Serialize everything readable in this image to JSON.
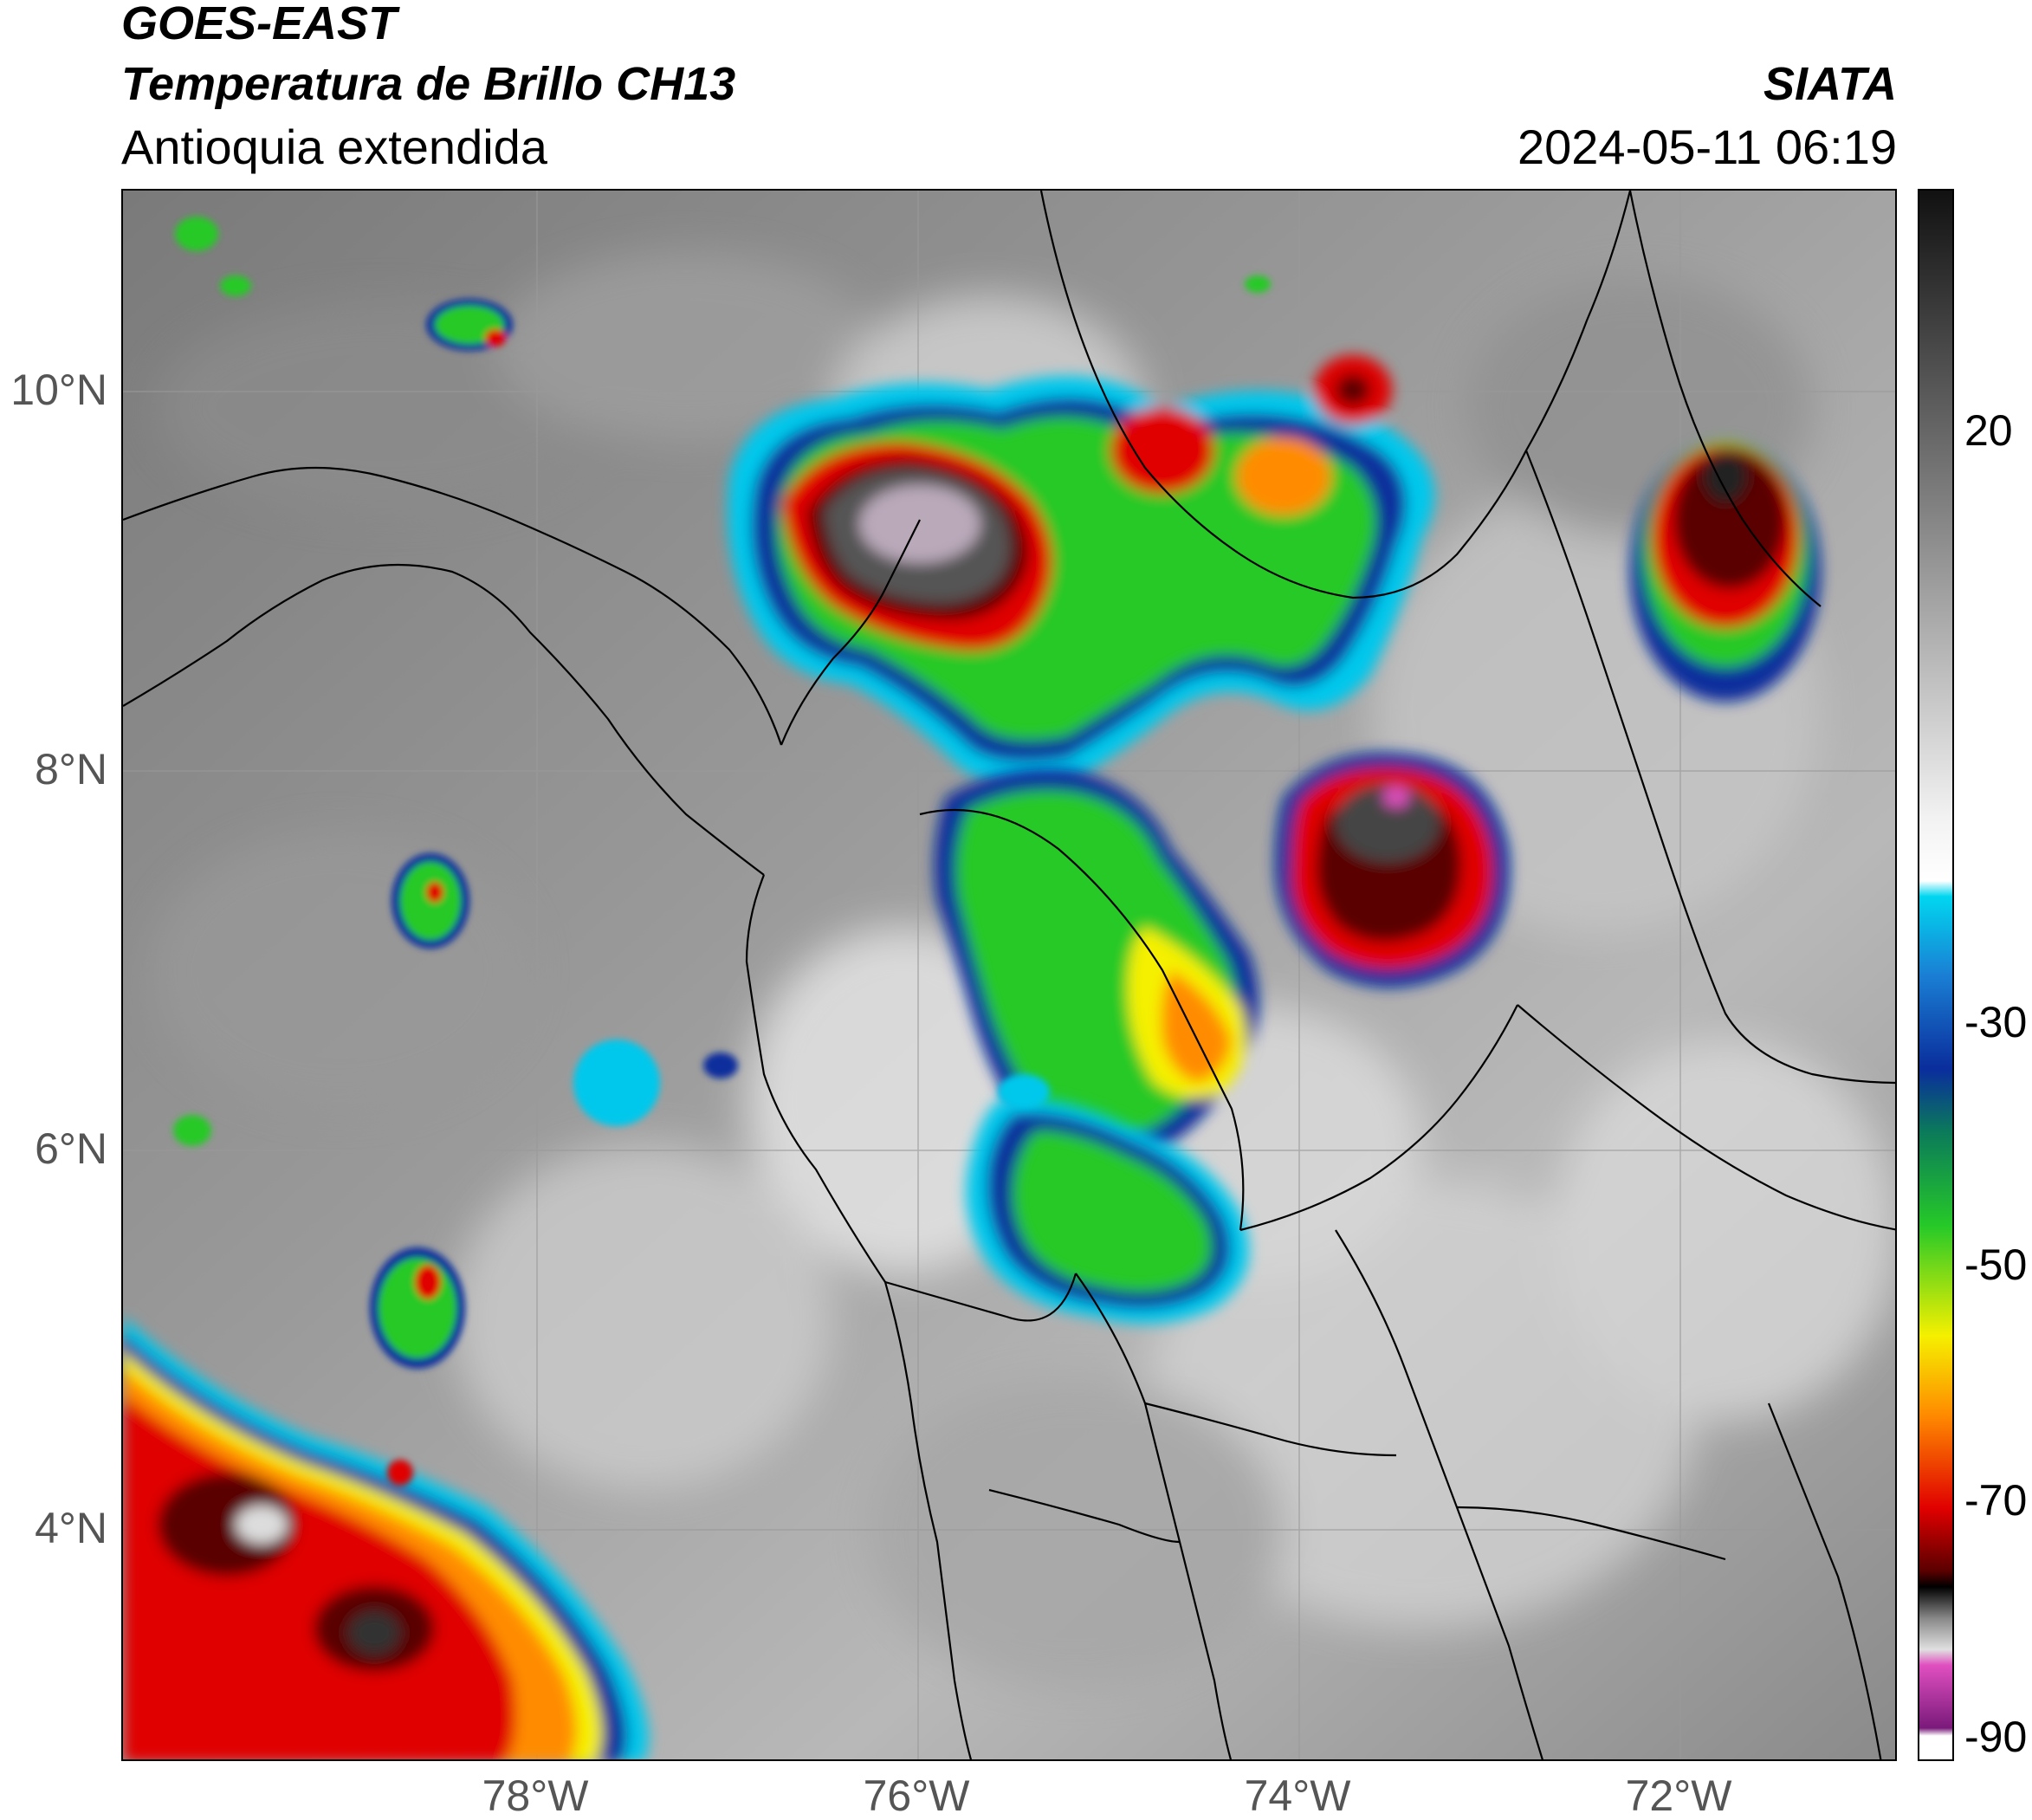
{
  "header": {
    "satellite": "GOES-EAST",
    "product": "Temperatura de Brillo CH13",
    "region": "Antioquia extendida",
    "brand": "SIATA",
    "timestamp": "2024-05-11 06:19"
  },
  "map": {
    "x_axis_labels": [
      "78°W",
      "76°W",
      "74°W",
      "72°W"
    ],
    "y_axis_labels": [
      "10°N",
      "8°N",
      "6°N",
      "4°N"
    ],
    "gridlines": true
  },
  "colorbar": {
    "tick_labels": [
      "20",
      "-30",
      "-50",
      "-70",
      "-90"
    ],
    "colors": {
      "warm_dark": "#111111",
      "gray_mid": "#808080",
      "gray_light": "#f2f2f2",
      "cyan": "#00d6f0",
      "blue": "#0a2d9c",
      "teal": "#0b7a5a",
      "green": "#26c928",
      "yellow": "#f5f000",
      "orange": "#ff8c00",
      "red": "#e00000",
      "dark_red": "#5a0000",
      "black": "#000000",
      "pink": "#e04fc0",
      "purple": "#7a1a7a"
    }
  }
}
